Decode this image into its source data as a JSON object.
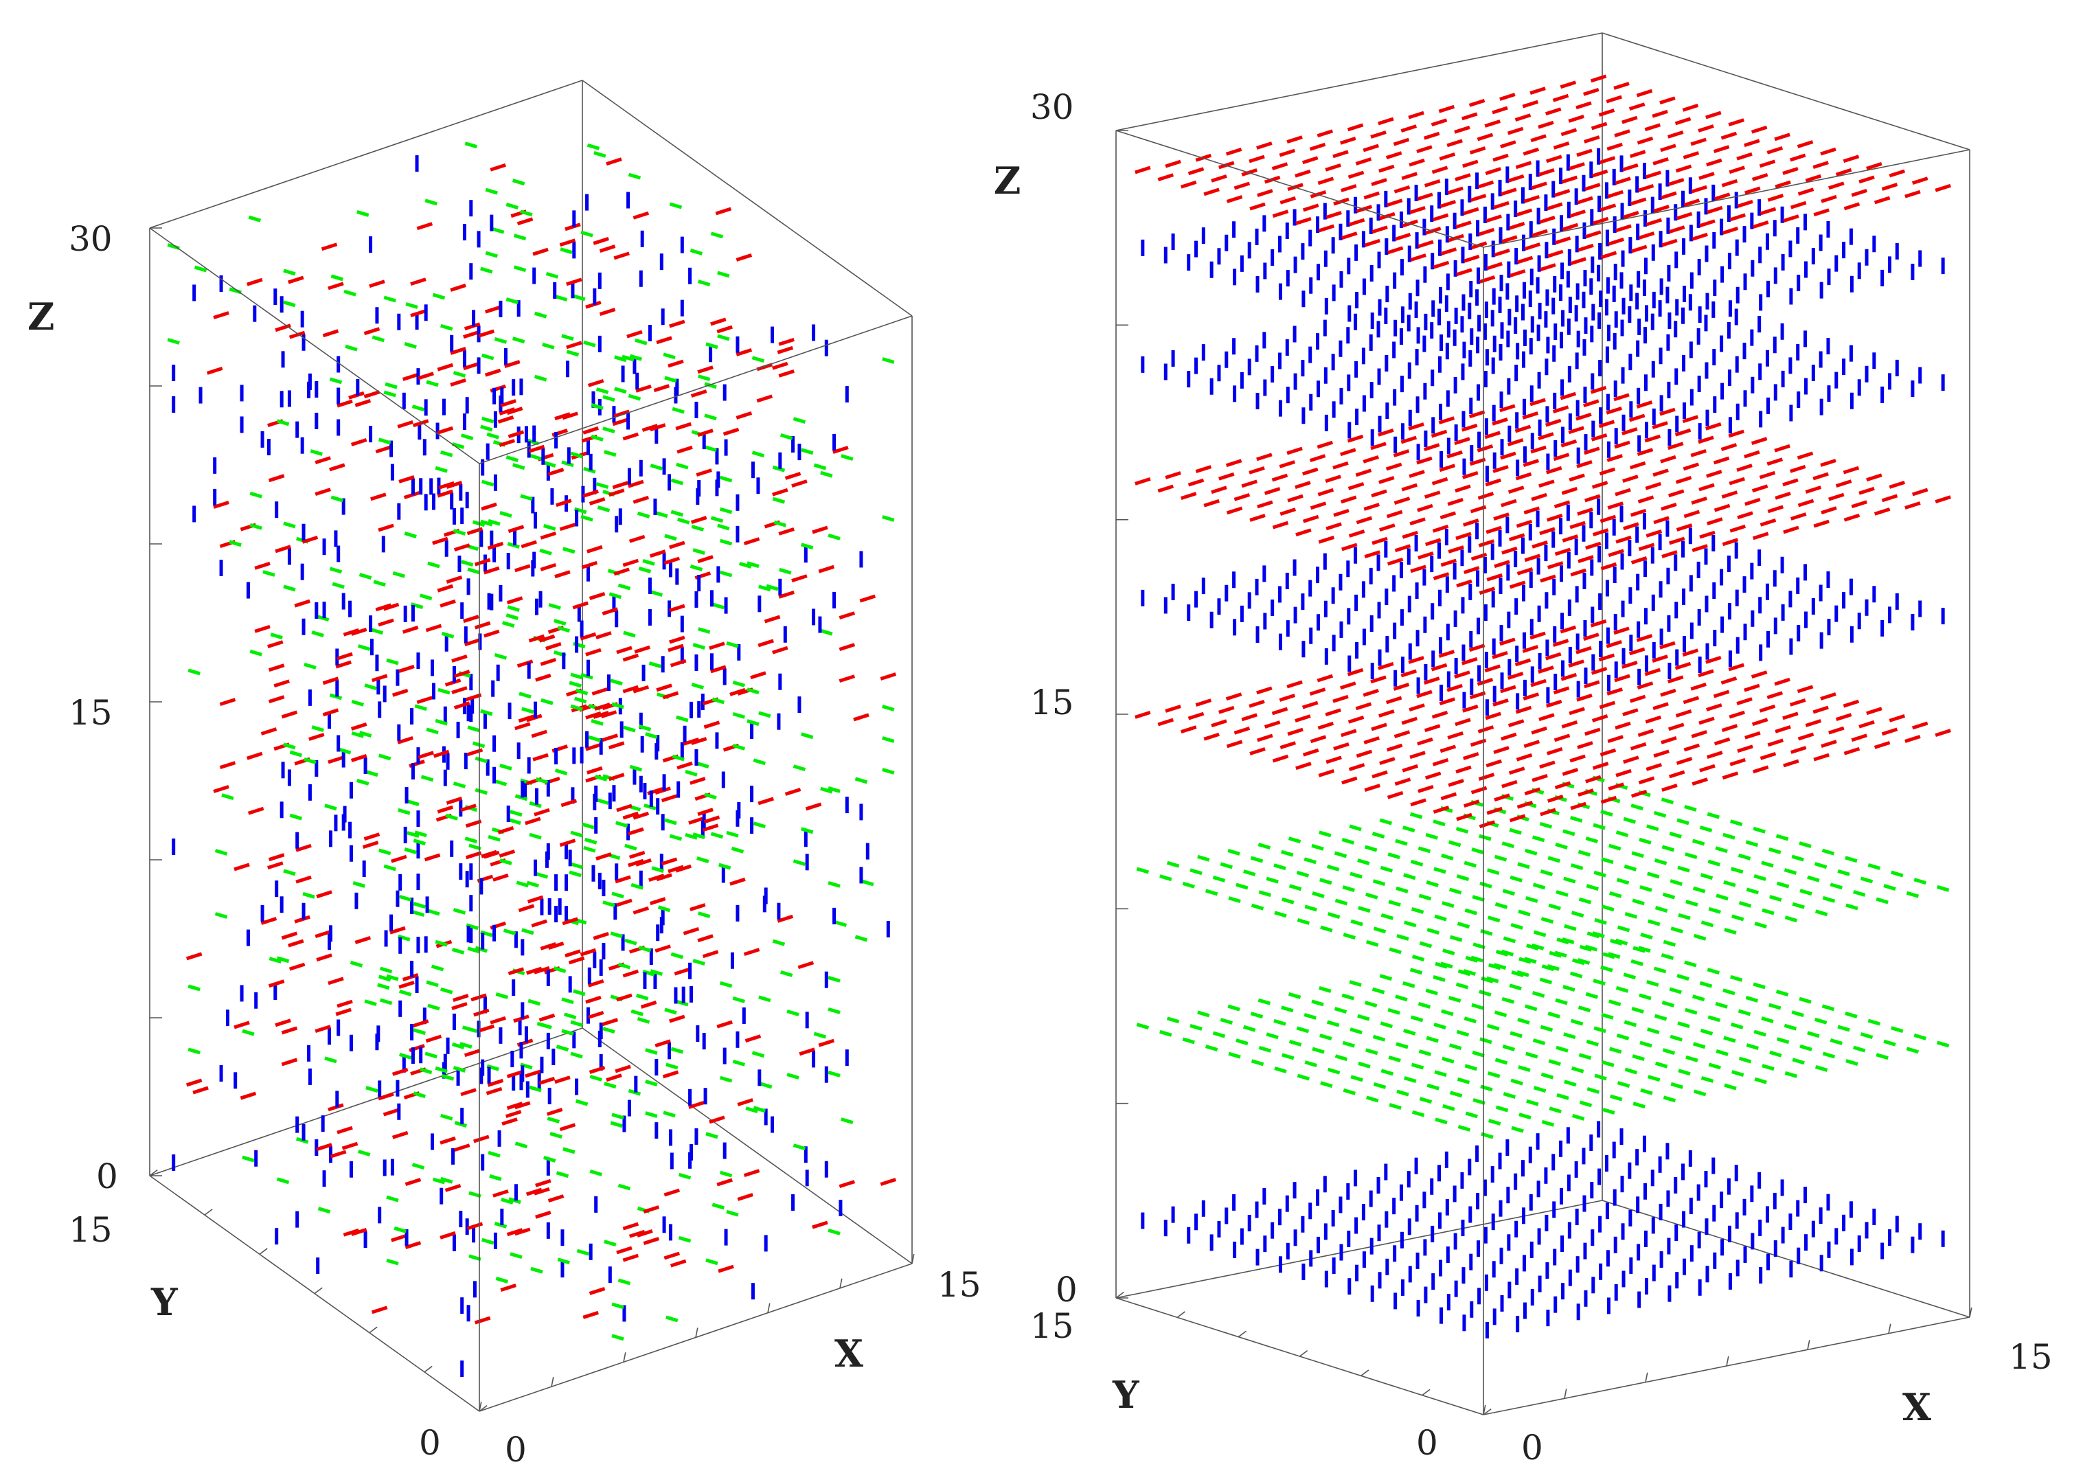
{
  "colors": {
    "x_spin": "#ee0000",
    "y_spin": "#00ee00",
    "z_spin": "#0000ee",
    "frame": "#555555"
  },
  "chart_data": [
    {
      "type": "scatter",
      "title": "",
      "xlabel": "X",
      "ylabel": "Y",
      "zlabel": "Z",
      "xlim": [
        0,
        15
      ],
      "ylim": [
        0,
        15
      ],
      "zlim": [
        0,
        30
      ],
      "x_ticks": [
        "0",
        "15"
      ],
      "y_ticks": [
        "0",
        "15"
      ],
      "z_ticks": [
        "0",
        "15",
        "30"
      ],
      "arrangement": "random",
      "layers": []
    },
    {
      "type": "scatter",
      "title": "",
      "xlabel": "X",
      "ylabel": "Y",
      "zlabel": "Z",
      "xlim": [
        0,
        15
      ],
      "ylim": [
        0,
        15
      ],
      "zlim": [
        0,
        30
      ],
      "x_ticks": [
        "0",
        "15"
      ],
      "y_ticks": [
        "0",
        "15"
      ],
      "z_ticks": [
        "0",
        "15",
        "30"
      ],
      "arrangement": "layered",
      "layers": [
        {
          "z": 2,
          "orientation": "z"
        },
        {
          "z": 7,
          "orientation": "y"
        },
        {
          "z": 11,
          "orientation": "y"
        },
        {
          "z": 15,
          "orientation": "x"
        },
        {
          "z": 18,
          "orientation": "z"
        },
        {
          "z": 21,
          "orientation": "x"
        },
        {
          "z": 24,
          "orientation": "z"
        },
        {
          "z": 27,
          "orientation": "z"
        },
        {
          "z": 29,
          "orientation": "x"
        }
      ]
    }
  ]
}
